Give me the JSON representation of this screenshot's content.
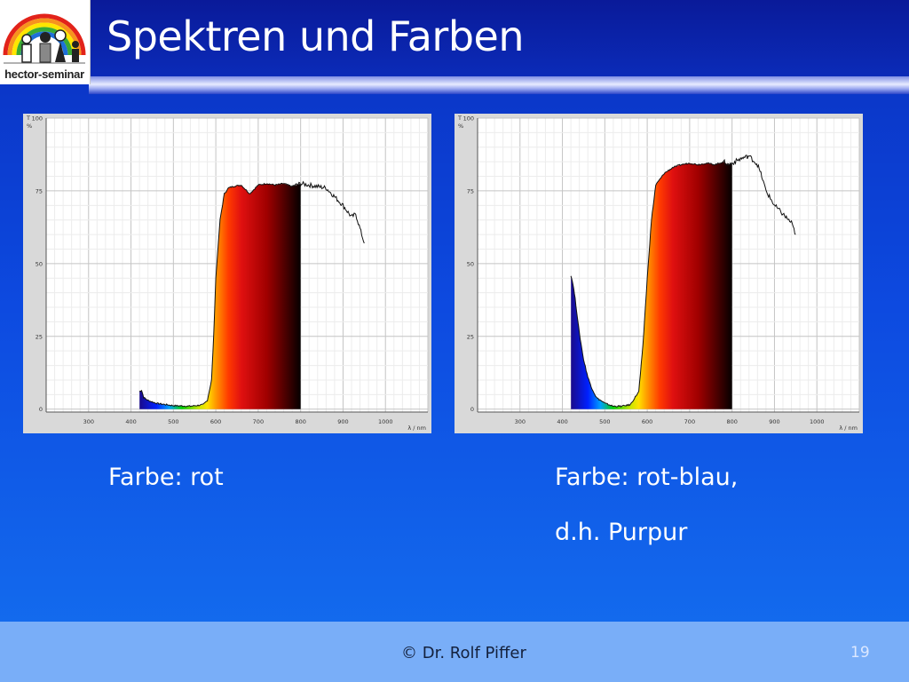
{
  "slide": {
    "title": "Spektren und Farben",
    "logo_text": "hector-seminar",
    "captions": {
      "left": "Farbe: rot",
      "right_line1": "Farbe: rot-blau,",
      "right_line2": "d.h. Purpur"
    },
    "footer": {
      "credit": "© Dr. Rolf Piffer",
      "page_number": "19"
    }
  },
  "chart_data": [
    {
      "type": "area",
      "title": "",
      "ylabel": "T %",
      "xlabel": "λ / nm",
      "xlim": [
        200,
        1100
      ],
      "ylim": [
        -1,
        100
      ],
      "x_ticks": [
        300,
        400,
        500,
        600,
        700,
        800,
        900,
        1000
      ],
      "y_ticks": [
        0,
        25,
        50,
        75,
        100
      ],
      "grid": true,
      "colored_range_nm": [
        420,
        800
      ],
      "series": [
        {
          "x": [
            420,
            425,
            430,
            440,
            460,
            500,
            540,
            570,
            580,
            590,
            595,
            600,
            610,
            620,
            630,
            640,
            660,
            680,
            700,
            720,
            740,
            760,
            780,
            790,
            800,
            820,
            840,
            860,
            880,
            900,
            920,
            930,
            940,
            950
          ],
          "y": [
            6,
            6.5,
            4,
            3,
            2,
            1.2,
            1,
            1.5,
            3,
            10,
            25,
            45,
            65,
            74,
            76,
            76.5,
            77,
            74,
            77,
            77.5,
            77,
            77.5,
            76.5,
            77,
            77.5,
            77,
            76.5,
            76,
            73,
            70,
            66,
            67,
            62,
            57
          ]
        }
      ]
    },
    {
      "type": "area",
      "title": "",
      "ylabel": "T %",
      "xlabel": "λ / nm",
      "xlim": [
        200,
        1100
      ],
      "ylim": [
        -1,
        100
      ],
      "x_ticks": [
        300,
        400,
        500,
        600,
        700,
        800,
        900,
        1000
      ],
      "y_ticks": [
        0,
        25,
        50,
        75,
        100
      ],
      "grid": true,
      "colored_range_nm": [
        420,
        800
      ],
      "series": [
        {
          "x": [
            420,
            425,
            430,
            440,
            450,
            460,
            470,
            480,
            500,
            520,
            540,
            560,
            580,
            590,
            600,
            610,
            620,
            640,
            660,
            680,
            700,
            720,
            740,
            760,
            780,
            790,
            800,
            820,
            840,
            860,
            870,
            880,
            900,
            920,
            940,
            950
          ],
          "y": [
            46,
            43,
            38,
            26,
            17,
            11,
            7,
            4,
            2,
            1,
            1,
            1.5,
            6,
            22,
            45,
            65,
            77,
            81,
            83,
            84,
            84.5,
            84,
            84.5,
            84,
            85,
            84,
            84.5,
            86,
            87,
            84,
            80,
            75,
            70,
            67,
            64,
            60
          ]
        }
      ]
    }
  ]
}
